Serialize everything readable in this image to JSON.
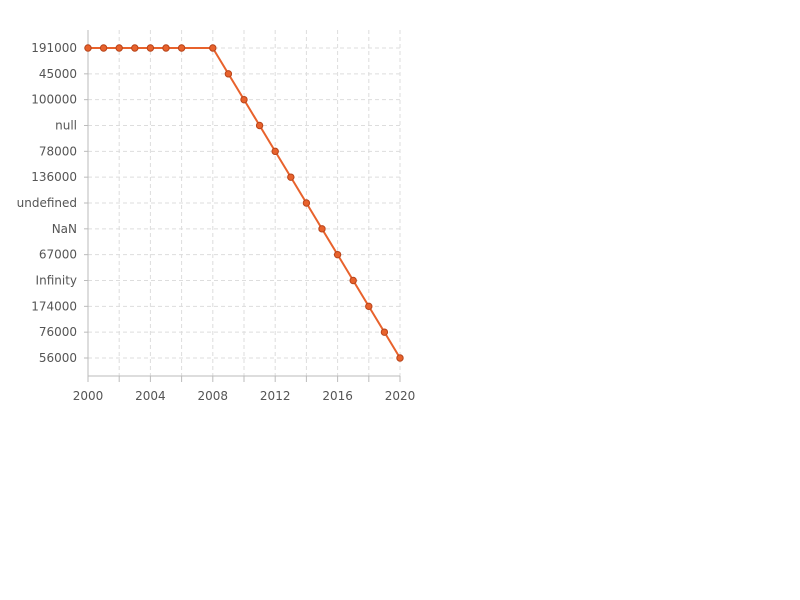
{
  "chart_data": {
    "type": "line",
    "title": "",
    "xlabel": "",
    "ylabel": "",
    "grid": true,
    "legend": "none",
    "x_ticks": [
      "2000",
      "2004",
      "2008",
      "2012",
      "2016",
      "2020"
    ],
    "y_categories": [
      "191000",
      "45000",
      "100000",
      "null",
      "78000",
      "136000",
      "undefined",
      "NaN",
      "67000",
      "Infinity",
      "174000",
      "76000",
      "56000"
    ],
    "series": [
      {
        "color": "#e8622c",
        "points": [
          {
            "x": 2000,
            "y": "191000"
          },
          {
            "x": 2001,
            "y": "191000"
          },
          {
            "x": 2002,
            "y": "191000"
          },
          {
            "x": 2003,
            "y": "191000"
          },
          {
            "x": 2004,
            "y": "191000"
          },
          {
            "x": 2005,
            "y": "191000"
          },
          {
            "x": 2006,
            "y": "191000"
          },
          {
            "x": 2008,
            "y": "191000"
          },
          {
            "x": 2009,
            "y": "45000"
          },
          {
            "x": 2010,
            "y": "100000"
          },
          {
            "x": 2011,
            "y": "null"
          },
          {
            "x": 2012,
            "y": "78000"
          },
          {
            "x": 2013,
            "y": "136000"
          },
          {
            "x": 2014,
            "y": "undefined"
          },
          {
            "x": 2015,
            "y": "NaN"
          },
          {
            "x": 2016,
            "y": "67000"
          },
          {
            "x": 2017,
            "y": "Infinity"
          },
          {
            "x": 2018,
            "y": "174000"
          },
          {
            "x": 2019,
            "y": "76000"
          },
          {
            "x": 2020,
            "y": "56000"
          }
        ]
      }
    ],
    "xlim": [
      2000,
      2020
    ]
  }
}
